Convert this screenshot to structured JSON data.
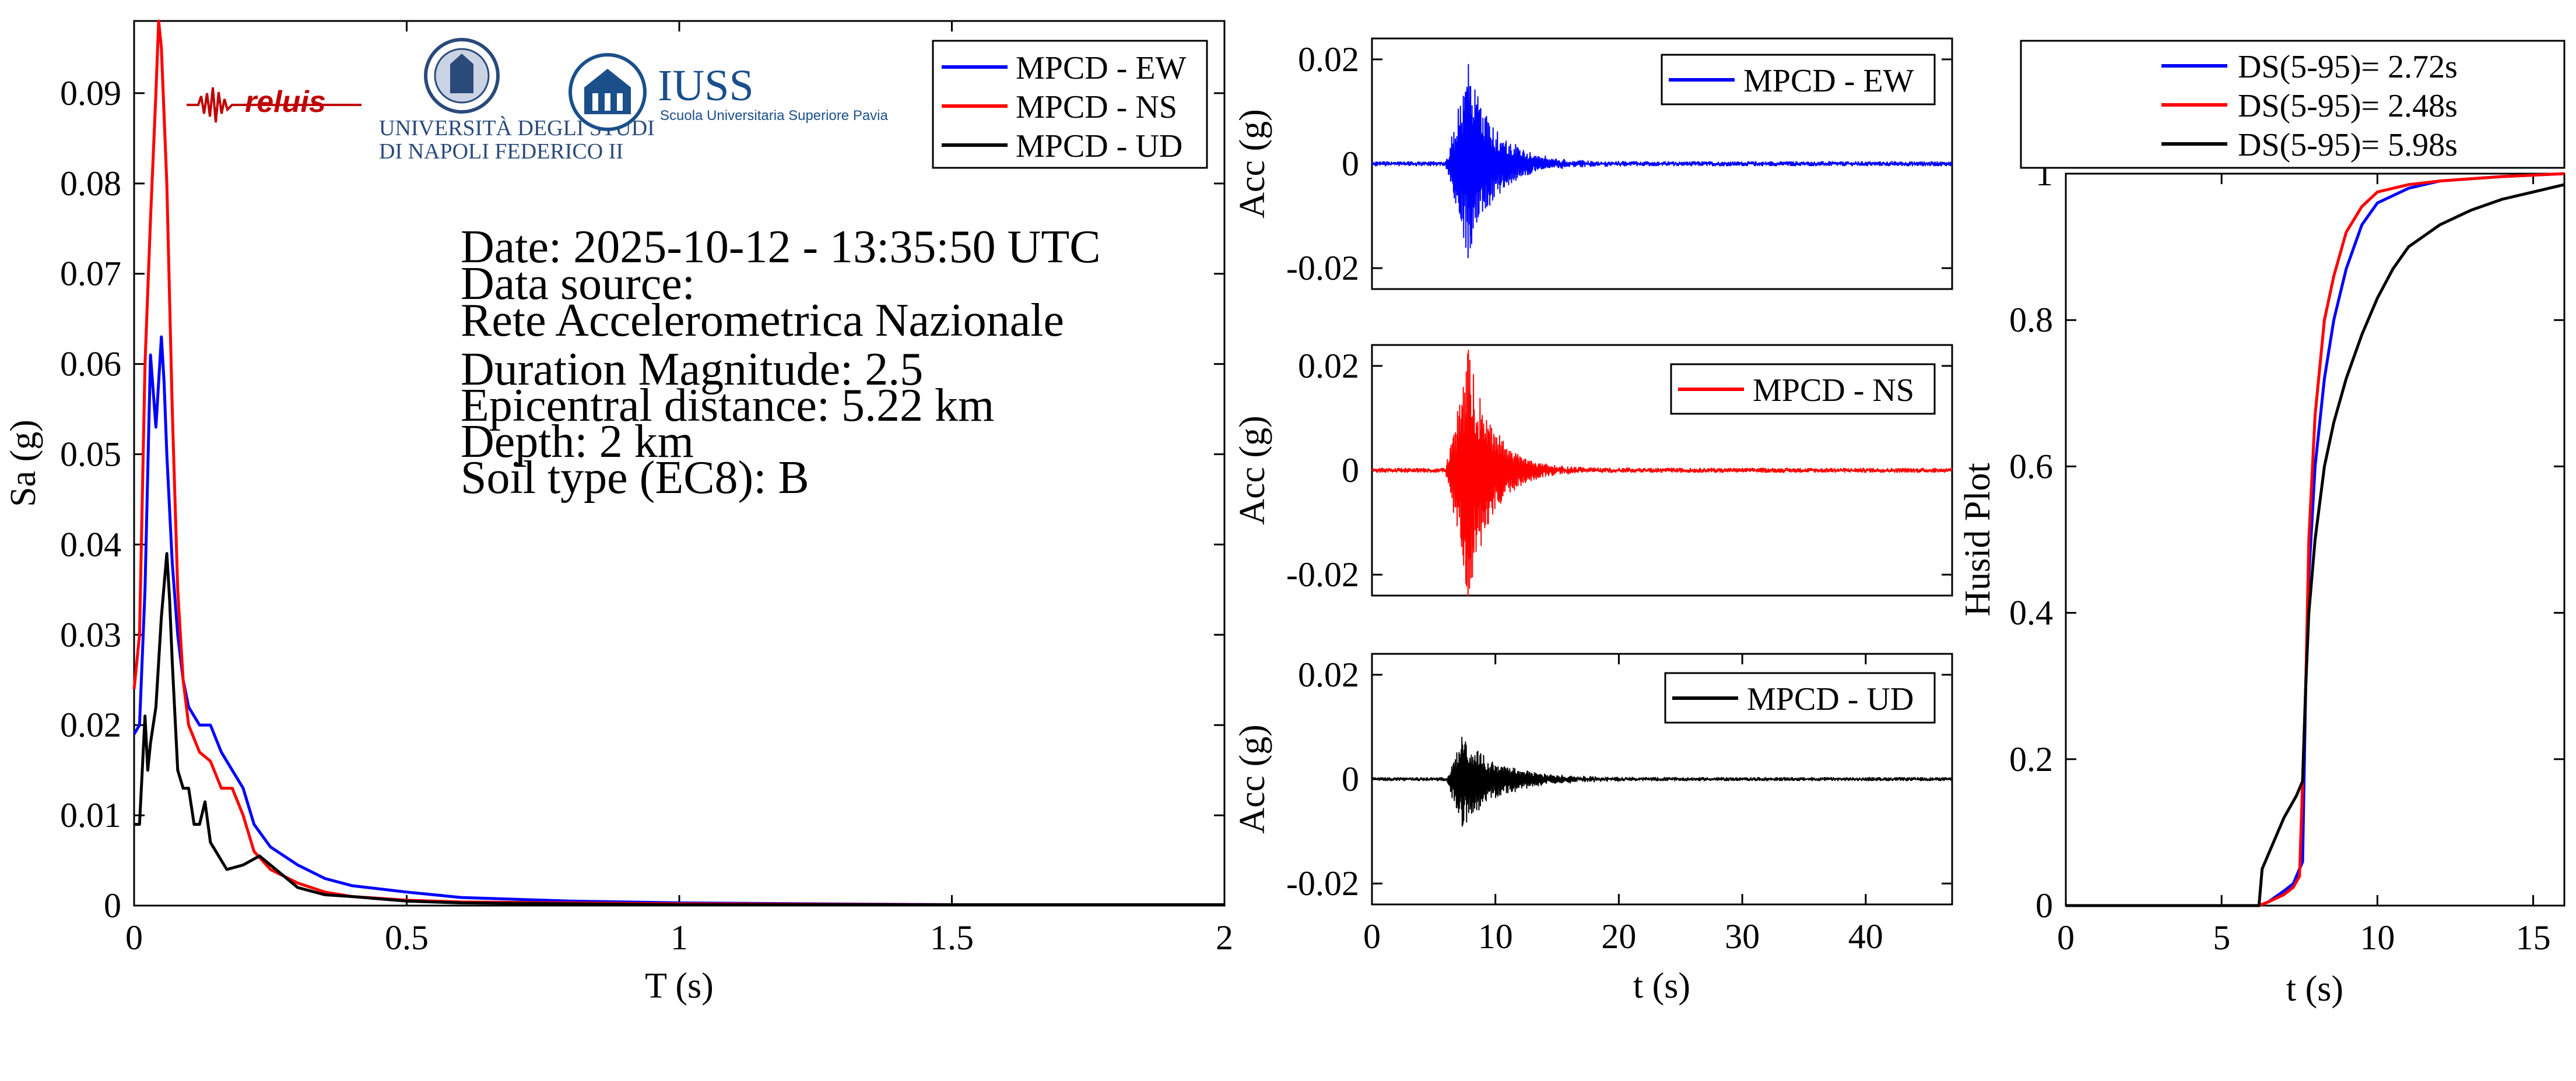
{
  "colors": {
    "ew": "#0000ff",
    "ns": "#ff0000",
    "ud": "#000000"
  },
  "info": {
    "date": "Date: 2025-10-12 - 13:35:50 UTC",
    "source_label": "Data source:",
    "source_name": "Rete Accelerometrica Nazionale",
    "magnitude": "Duration Magnitude: 2.5",
    "distance": "Epicentral distance: 5.22 km",
    "depth": "Depth: 2 km",
    "soil": "Soil type (EC8): B"
  },
  "logos": {
    "reluis": "reluis",
    "unina_line1": "UNIVERSITÀ DEGLI STUDI",
    "unina_line2": "DI NAPOLI FEDERICO II",
    "iuss_title": "IUSS",
    "iuss_subtitle": "Scuola Universitaria Superiore Pavia"
  },
  "chart_data": [
    {
      "id": "spectrum",
      "type": "line",
      "title": "",
      "xlabel": "T (s)",
      "ylabel": "Sa (g)",
      "xlim": [
        0,
        2
      ],
      "ylim": [
        0,
        0.098
      ],
      "xticks": [
        0,
        0.5,
        1,
        1.5,
        2
      ],
      "xtick_labels": [
        "0",
        "0.5",
        "1",
        "1.5",
        "2"
      ],
      "yticks": [
        0,
        0.01,
        0.02,
        0.03,
        0.04,
        0.05,
        0.06,
        0.07,
        0.08,
        0.09
      ],
      "ytick_labels": [
        "0",
        "0.01",
        "0.02",
        "0.03",
        "0.04",
        "0.05",
        "0.06",
        "0.07",
        "0.08",
        "0.09"
      ],
      "legend_position": "top-right",
      "series": [
        {
          "name": "MPCD - EW",
          "color_key": "ew",
          "x": [
            0,
            0.01,
            0.02,
            0.03,
            0.04,
            0.05,
            0.055,
            0.06,
            0.07,
            0.08,
            0.09,
            0.1,
            0.12,
            0.14,
            0.16,
            0.18,
            0.2,
            0.22,
            0.25,
            0.3,
            0.35,
            0.4,
            0.5,
            0.6,
            0.8,
            1.0,
            1.5,
            2.0
          ],
          "values": [
            0.019,
            0.02,
            0.035,
            0.061,
            0.053,
            0.063,
            0.058,
            0.05,
            0.038,
            0.03,
            0.025,
            0.022,
            0.02,
            0.02,
            0.017,
            0.015,
            0.013,
            0.009,
            0.0065,
            0.0045,
            0.003,
            0.0022,
            0.0015,
            0.0009,
            0.0005,
            0.0003,
            0.0001,
            0.0001
          ]
        },
        {
          "name": "MPCD - NS",
          "color_key": "ns",
          "x": [
            0,
            0.01,
            0.02,
            0.03,
            0.04,
            0.045,
            0.05,
            0.06,
            0.07,
            0.08,
            0.09,
            0.1,
            0.12,
            0.14,
            0.16,
            0.18,
            0.2,
            0.22,
            0.25,
            0.3,
            0.35,
            0.4,
            0.5,
            0.6,
            0.8,
            1.0,
            1.5,
            2.0
          ],
          "values": [
            0.024,
            0.03,
            0.06,
            0.076,
            0.09,
            0.098,
            0.095,
            0.08,
            0.055,
            0.035,
            0.025,
            0.02,
            0.017,
            0.016,
            0.013,
            0.013,
            0.01,
            0.006,
            0.004,
            0.0025,
            0.0015,
            0.001,
            0.0006,
            0.0004,
            0.0003,
            0.0002,
            0.0001,
            0.0001
          ]
        },
        {
          "name": "MPCD - UD",
          "color_key": "ud",
          "x": [
            0,
            0.01,
            0.02,
            0.025,
            0.03,
            0.04,
            0.05,
            0.06,
            0.065,
            0.07,
            0.08,
            0.09,
            0.1,
            0.11,
            0.12,
            0.13,
            0.14,
            0.15,
            0.17,
            0.2,
            0.23,
            0.25,
            0.3,
            0.35,
            0.4,
            0.5,
            0.6,
            0.8,
            1.0,
            1.5,
            2.0
          ],
          "values": [
            0.009,
            0.009,
            0.021,
            0.015,
            0.018,
            0.022,
            0.032,
            0.039,
            0.034,
            0.027,
            0.015,
            0.013,
            0.013,
            0.009,
            0.009,
            0.0115,
            0.007,
            0.006,
            0.004,
            0.0045,
            0.0055,
            0.0045,
            0.002,
            0.0012,
            0.001,
            0.0005,
            0.0003,
            0.0002,
            0.0001,
            0.0001,
            0.0001
          ]
        }
      ]
    },
    {
      "id": "acc-ew",
      "type": "line",
      "xlabel": "",
      "ylabel": "Acc (g)",
      "xlim": [
        0,
        47
      ],
      "ylim": [
        -0.024,
        0.024
      ],
      "xticks": [],
      "yticks": [
        0.02,
        0,
        -0.02
      ],
      "ytick_labels": [
        "0.02",
        "0",
        "-0.02"
      ],
      "legend_position": "top-right",
      "series": [
        {
          "name": "MPCD - EW",
          "color_key": "ew",
          "onset_s": 6.0,
          "peak_time_s": 7.8,
          "peak_pos": 0.019,
          "peak_neg": -0.018,
          "decay_s": 2.2,
          "noise": 0.0004
        }
      ]
    },
    {
      "id": "acc-ns",
      "type": "line",
      "xlabel": "",
      "ylabel": "Acc (g)",
      "xlim": [
        0,
        47
      ],
      "ylim": [
        -0.024,
        0.024
      ],
      "xticks": [],
      "yticks": [
        0.02,
        0,
        -0.02
      ],
      "ytick_labels": [
        "0.02",
        "0",
        "-0.02"
      ],
      "legend_position": "top-right",
      "series": [
        {
          "name": "MPCD - NS",
          "color_key": "ns",
          "onset_s": 6.0,
          "peak_time_s": 7.8,
          "peak_pos": 0.023,
          "peak_neg": -0.024,
          "decay_s": 2.0,
          "noise": 0.0004
        }
      ]
    },
    {
      "id": "acc-ud",
      "type": "line",
      "xlabel": "t (s)",
      "ylabel": "Acc (g)",
      "xlim": [
        0,
        47
      ],
      "ylim": [
        -0.024,
        0.024
      ],
      "xticks": [
        0,
        10,
        20,
        30,
        40
      ],
      "xtick_labels": [
        "0",
        "10",
        "20",
        "30",
        "40"
      ],
      "yticks": [
        0.02,
        0,
        -0.02
      ],
      "ytick_labels": [
        "0.02",
        "0",
        "-0.02"
      ],
      "legend_position": "top-right",
      "series": [
        {
          "name": "MPCD - UD",
          "color_key": "ud",
          "onset_s": 6.0,
          "peak_time_s": 7.3,
          "peak_pos": 0.008,
          "peak_neg": -0.009,
          "decay_s": 3.0,
          "noise": 0.0003
        }
      ]
    },
    {
      "id": "husid",
      "type": "line",
      "xlabel": "t (s)",
      "ylabel": "Husid Plot",
      "xlim": [
        0,
        16
      ],
      "ylim": [
        0,
        1
      ],
      "xticks": [
        0,
        5,
        10,
        15
      ],
      "xtick_labels": [
        "0",
        "5",
        "10",
        "15"
      ],
      "yticks": [
        0,
        0.2,
        0.4,
        0.6,
        0.8,
        1
      ],
      "ytick_labels": [
        "0",
        "0.2",
        "0.4",
        "0.6",
        "0.8",
        "1"
      ],
      "legend_position": "above",
      "series": [
        {
          "name": "DS(5-95)= 2.72s",
          "color_key": "ew",
          "x": [
            0,
            6.2,
            6.5,
            7.0,
            7.3,
            7.6,
            7.7,
            7.8,
            8.0,
            8.3,
            8.6,
            9.0,
            9.5,
            10.0,
            11.0,
            12.0,
            13.0,
            14.0,
            16.0
          ],
          "values": [
            0,
            0,
            0.005,
            0.02,
            0.03,
            0.06,
            0.3,
            0.45,
            0.6,
            0.72,
            0.8,
            0.87,
            0.93,
            0.96,
            0.98,
            0.99,
            0.993,
            0.996,
            1.0
          ]
        },
        {
          "name": "DS(5-95)= 2.48s",
          "color_key": "ns",
          "x": [
            0,
            6.2,
            6.5,
            7.0,
            7.3,
            7.5,
            7.7,
            7.8,
            8.0,
            8.3,
            8.6,
            9.0,
            9.5,
            10.0,
            11.0,
            12.0,
            13.0,
            14.0,
            16.0
          ],
          "values": [
            0,
            0,
            0.005,
            0.015,
            0.025,
            0.04,
            0.3,
            0.5,
            0.67,
            0.8,
            0.86,
            0.92,
            0.955,
            0.975,
            0.985,
            0.99,
            0.993,
            0.996,
            1.0
          ]
        },
        {
          "name": "DS(5-95)= 5.98s",
          "color_key": "ud",
          "x": [
            0,
            6.2,
            6.3,
            6.6,
            7.0,
            7.4,
            7.6,
            7.7,
            7.8,
            8.0,
            8.3,
            8.6,
            9.0,
            9.5,
            10.0,
            10.5,
            11.0,
            12.0,
            13.0,
            14.0,
            15.0,
            16.0
          ],
          "values": [
            0,
            0,
            0.05,
            0.08,
            0.12,
            0.15,
            0.17,
            0.3,
            0.4,
            0.5,
            0.6,
            0.66,
            0.72,
            0.78,
            0.83,
            0.87,
            0.9,
            0.93,
            0.95,
            0.965,
            0.975,
            0.985
          ]
        }
      ]
    }
  ]
}
